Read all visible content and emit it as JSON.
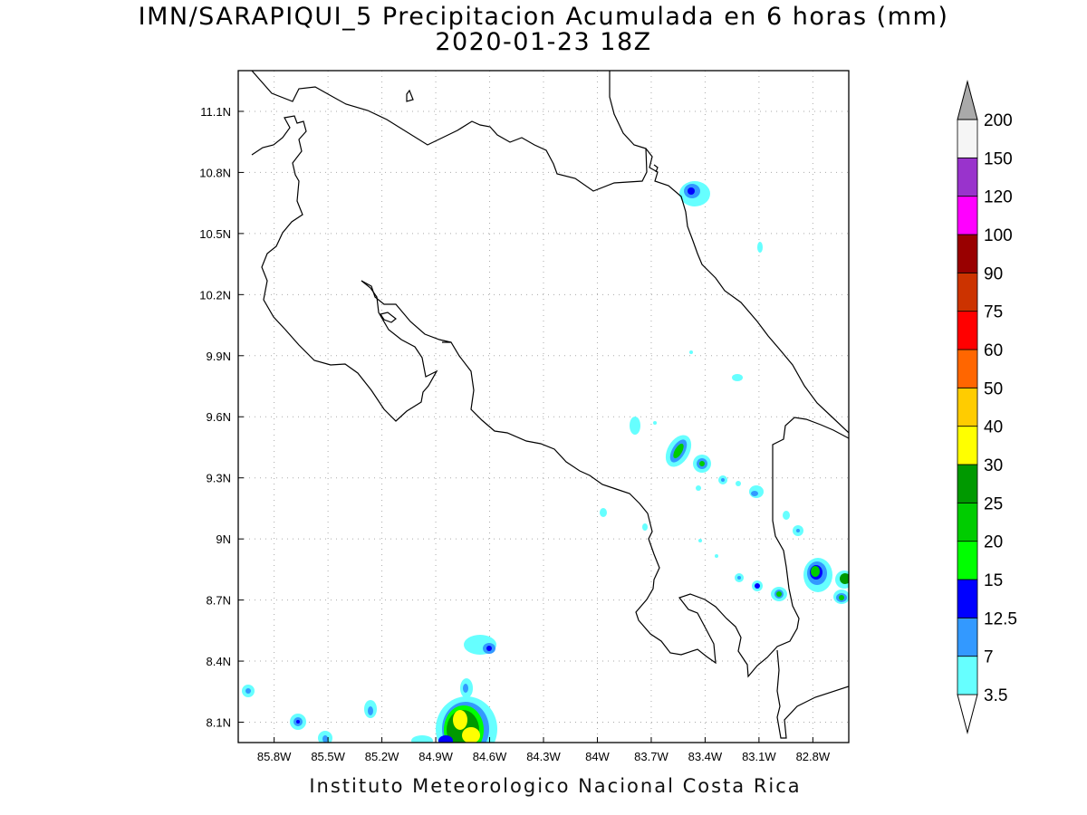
{
  "title": "IMN/SARAPIQUI_5 Precipitacion Acumulada en 6 horas (mm)",
  "subtitle": "2020-01-23 18Z",
  "footer": "Instituto Meteorologico Nacional Costa Rica",
  "map": {
    "lon_range": [
      -86.0,
      -82.6
    ],
    "lat_range": [
      8.0,
      11.3
    ],
    "x_ticks": [
      {
        "value": -85.8,
        "label": "85.8W"
      },
      {
        "value": -85.5,
        "label": "85.5W"
      },
      {
        "value": -85.2,
        "label": "85.2W"
      },
      {
        "value": -84.9,
        "label": "84.9W"
      },
      {
        "value": -84.6,
        "label": "84.6W"
      },
      {
        "value": -84.3,
        "label": "84.3W"
      },
      {
        "value": -84.0,
        "label": "84W"
      },
      {
        "value": -83.7,
        "label": "83.7W"
      },
      {
        "value": -83.4,
        "label": "83.4W"
      },
      {
        "value": -83.1,
        "label": "83.1W"
      },
      {
        "value": -82.8,
        "label": "82.8W"
      }
    ],
    "y_ticks": [
      {
        "value": 8.1,
        "label": "8.1N"
      },
      {
        "value": 8.4,
        "label": "8.4N"
      },
      {
        "value": 8.7,
        "label": "8.7N"
      },
      {
        "value": 9.0,
        "label": "9N"
      },
      {
        "value": 9.3,
        "label": "9.3N"
      },
      {
        "value": 9.6,
        "label": "9.6N"
      },
      {
        "value": 9.9,
        "label": "9.9N"
      },
      {
        "value": 10.2,
        "label": "10.2N"
      },
      {
        "value": 10.5,
        "label": "10.5N"
      },
      {
        "value": 10.8,
        "label": "10.8N"
      },
      {
        "value": 11.1,
        "label": "11.1N"
      }
    ],
    "grid": true
  },
  "legend": {
    "colors": [
      "#66ffff",
      "#3399ff",
      "#0000ff",
      "#00ff00",
      "#00cc00",
      "#009900",
      "#ffff00",
      "#ffcc00",
      "#ff6600",
      "#ff0000",
      "#cc3300",
      "#990000",
      "#ff00ff",
      "#9933cc",
      "#f5f5f5",
      "#aaaaaa"
    ],
    "labels": [
      "3.5",
      "7",
      "12.5",
      "15",
      "20",
      "25",
      "30",
      "40",
      "50",
      "60",
      "75",
      "90",
      "100",
      "120",
      "150",
      "200"
    ]
  }
}
